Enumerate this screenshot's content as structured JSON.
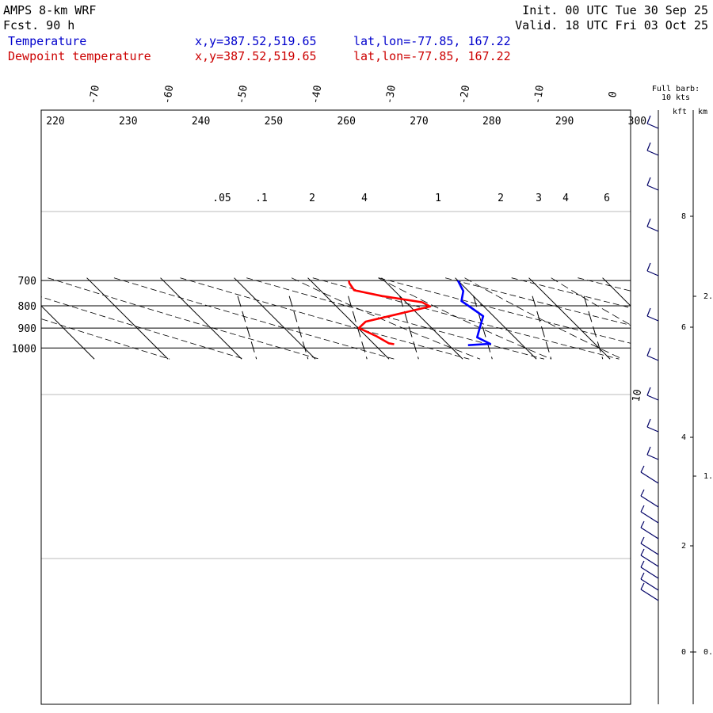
{
  "header": {
    "model": "AMPS 8-km WRF",
    "forecast": "Fcst.   90 h",
    "init": "Init. 00 UTC Tue 30 Sep 25",
    "valid": "Valid. 18 UTC Fri 03 Oct 25",
    "temp_label": "Temperature",
    "dew_label": "Dewpoint temperature",
    "temp_xy": "x,y=387.52,519.65",
    "temp_latlon": "lat,lon=-77.85, 167.22",
    "dew_xy": "x,y=387.52,519.65",
    "dew_latlon": "lat,lon=-77.85, 167.22",
    "barb_note_1": "Full barb:",
    "barb_note_2": "10 kts",
    "kft_label": "kft",
    "km_label": "km"
  },
  "colors": {
    "temperature": "#0000ff",
    "dewpoint": "#ff0000",
    "header_blue": "#0000cc",
    "header_red": "#cc0000"
  },
  "chart_data": {
    "type": "line",
    "subtype": "skew-T log-P sounding",
    "ylabel": "",
    "pressure_ticks": [
      "700",
      "800",
      "900",
      "1000"
    ],
    "pressure_range_hpa": [
      700,
      1050
    ],
    "isotherm_labels_c": [
      "-70",
      "-60",
      "-50",
      "-40",
      "-30",
      "-20",
      "-10",
      "0"
    ],
    "dry_adiabat_labels_k": [
      "220",
      "230",
      "240",
      "250",
      "260",
      "270",
      "280",
      "290",
      "300"
    ],
    "mixing_ratio_labels": [
      ".05",
      ".1",
      "2",
      "4",
      "1",
      "2",
      "3",
      "4",
      "6"
    ],
    "side_isotherm_label": "10",
    "height_ticks_kft": [
      "8",
      "6",
      "4",
      "2",
      "0"
    ],
    "height_ticks_km": [
      "2.",
      "1.",
      "0."
    ],
    "series": [
      {
        "name": "Temperature",
        "color": "#0000ff",
        "points": [
          {
            "p": 700,
            "t": -20.0
          },
          {
            "p": 740,
            "t": -20.7
          },
          {
            "p": 780,
            "t": -22.3
          },
          {
            "p": 800,
            "t": -22.0
          },
          {
            "p": 845,
            "t": -21.4
          },
          {
            "p": 900,
            "t": -23.5
          },
          {
            "p": 945,
            "t": -25.1
          },
          {
            "p": 978,
            "t": -24.2
          },
          {
            "p": 985,
            "t": -27.4
          }
        ]
      },
      {
        "name": "Dewpoint temperature",
        "color": "#ff0000",
        "points": [
          {
            "p": 700,
            "t": -34.8
          },
          {
            "p": 710,
            "t": -35.1
          },
          {
            "p": 737,
            "t": -35.4
          },
          {
            "p": 760,
            "t": -32.4
          },
          {
            "p": 785,
            "t": -27.8
          },
          {
            "p": 803,
            "t": -27.3
          },
          {
            "p": 870,
            "t": -38.1
          },
          {
            "p": 900,
            "t": -39.9
          },
          {
            "p": 940,
            "t": -38.6
          },
          {
            "p": 975,
            "t": -37.9
          },
          {
            "p": 980,
            "t": -37.3
          }
        ]
      }
    ]
  }
}
